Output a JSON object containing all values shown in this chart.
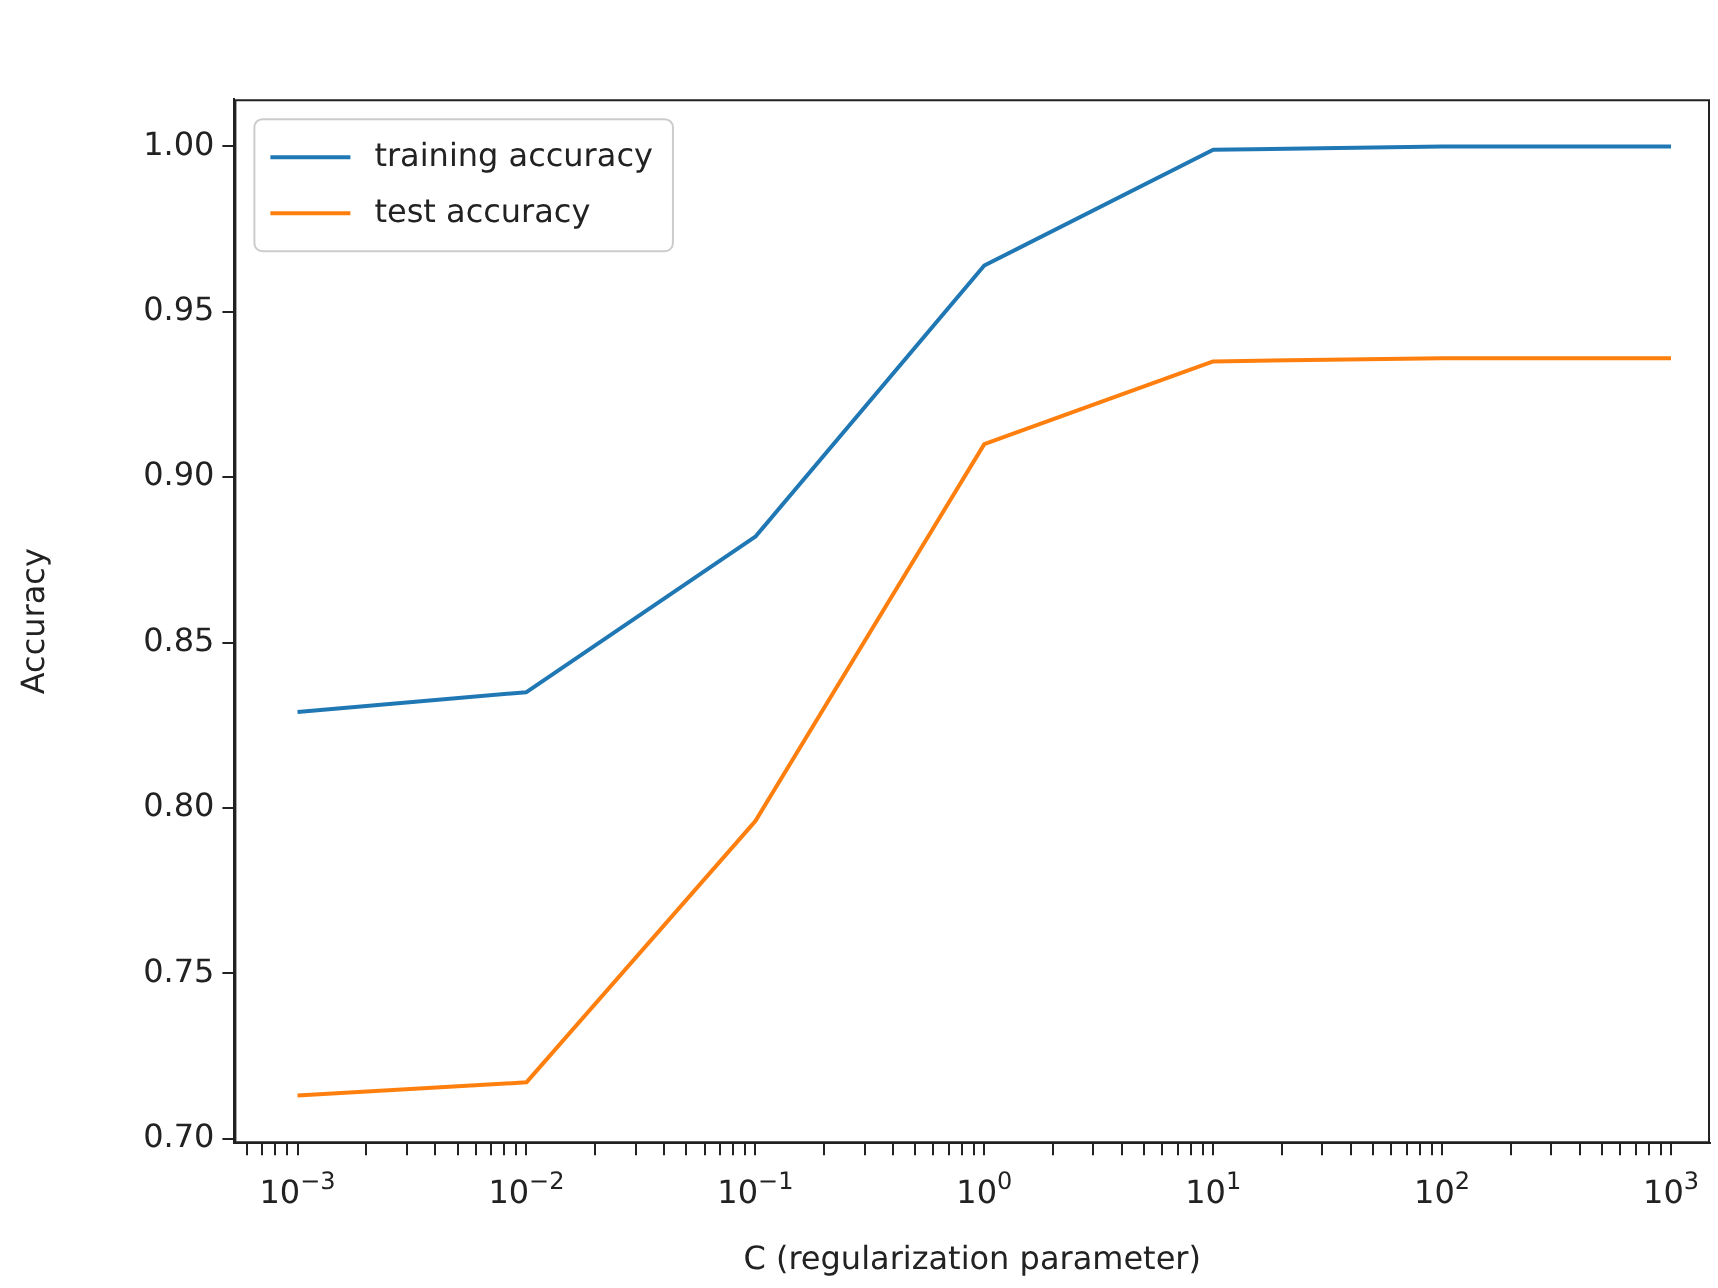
{
  "chart_data": {
    "type": "line",
    "xlabel": "C (regularization parameter)",
    "ylabel": "Accuracy",
    "log": "x",
    "x": [
      0.001,
      0.01,
      0.1,
      1,
      10,
      100,
      1000
    ],
    "series": [
      {
        "name": "training accuracy",
        "color": "#1f77b4",
        "values": [
          0.829,
          0.835,
          0.882,
          0.964,
          0.999,
          1.0,
          1.0
        ]
      },
      {
        "name": "test accuracy",
        "color": "#ff7f0e",
        "values": [
          0.713,
          0.717,
          0.796,
          0.91,
          0.935,
          0.936,
          0.936
        ]
      }
    ],
    "xlim": [
      0.00053,
      1480
    ],
    "ylim": [
      0.6986,
      1.0143
    ],
    "xticks": [
      {
        "value": 0.0006,
        "label": null
      },
      {
        "value": 0.0007,
        "label": null
      },
      {
        "value": 0.0008,
        "label": null
      },
      {
        "value": 0.0009,
        "label": null
      },
      {
        "value": 0.001,
        "label": "10$^{−3}$"
      },
      {
        "value": 0.002,
        "label": null
      },
      {
        "value": 0.003,
        "label": null
      },
      {
        "value": 0.004,
        "label": null
      },
      {
        "value": 0.005,
        "label": null
      },
      {
        "value": 0.006,
        "label": null
      },
      {
        "value": 0.007,
        "label": null
      },
      {
        "value": 0.008,
        "label": null
      },
      {
        "value": 0.009,
        "label": null
      },
      {
        "value": 0.01,
        "label": "10$^{−2}$"
      },
      {
        "value": 0.02,
        "label": null
      },
      {
        "value": 0.03,
        "label": null
      },
      {
        "value": 0.04,
        "label": null
      },
      {
        "value": 0.05,
        "label": null
      },
      {
        "value": 0.06,
        "label": null
      },
      {
        "value": 0.07,
        "label": null
      },
      {
        "value": 0.08,
        "label": null
      },
      {
        "value": 0.09,
        "label": null
      },
      {
        "value": 0.1,
        "label": "10$^{−1}$"
      },
      {
        "value": 0.2,
        "label": null
      },
      {
        "value": 0.3,
        "label": null
      },
      {
        "value": 0.4,
        "label": null
      },
      {
        "value": 0.5,
        "label": null
      },
      {
        "value": 0.6,
        "label": null
      },
      {
        "value": 0.7,
        "label": null
      },
      {
        "value": 0.8,
        "label": null
      },
      {
        "value": 0.9,
        "label": null
      },
      {
        "value": 1,
        "label": "10$^{0}$"
      },
      {
        "value": 2,
        "label": null
      },
      {
        "value": 3,
        "label": null
      },
      {
        "value": 4,
        "label": null
      },
      {
        "value": 5,
        "label": null
      },
      {
        "value": 6,
        "label": null
      },
      {
        "value": 7,
        "label": null
      },
      {
        "value": 8,
        "label": null
      },
      {
        "value": 9,
        "label": null
      },
      {
        "value": 10,
        "label": "10$^{1}$"
      },
      {
        "value": 20,
        "label": null
      },
      {
        "value": 30,
        "label": null
      },
      {
        "value": 40,
        "label": null
      },
      {
        "value": 50,
        "label": null
      },
      {
        "value": 60,
        "label": null
      },
      {
        "value": 70,
        "label": null
      },
      {
        "value": 80,
        "label": null
      },
      {
        "value": 90,
        "label": null
      },
      {
        "value": 100,
        "label": "10$^{2}$"
      },
      {
        "value": 200,
        "label": null
      },
      {
        "value": 300,
        "label": null
      },
      {
        "value": 400,
        "label": null
      },
      {
        "value": 500,
        "label": null
      },
      {
        "value": 600,
        "label": null
      },
      {
        "value": 700,
        "label": null
      },
      {
        "value": 800,
        "label": null
      },
      {
        "value": 900,
        "label": null
      },
      {
        "value": 1000,
        "label": "10$^{3}$"
      }
    ],
    "yticks": [
      {
        "value": 0.7,
        "label": "0.70"
      },
      {
        "value": 0.75,
        "label": "0.75"
      },
      {
        "value": 0.8,
        "label": "0.80"
      },
      {
        "value": 0.85,
        "label": "0.85"
      },
      {
        "value": 0.9,
        "label": "0.90"
      },
      {
        "value": 0.95,
        "label": "0.95"
      },
      {
        "value": 1.0,
        "label": "1.00"
      }
    ],
    "grid": false,
    "legend": "top left",
    "marker": "none",
    "line_style": "solid"
  }
}
